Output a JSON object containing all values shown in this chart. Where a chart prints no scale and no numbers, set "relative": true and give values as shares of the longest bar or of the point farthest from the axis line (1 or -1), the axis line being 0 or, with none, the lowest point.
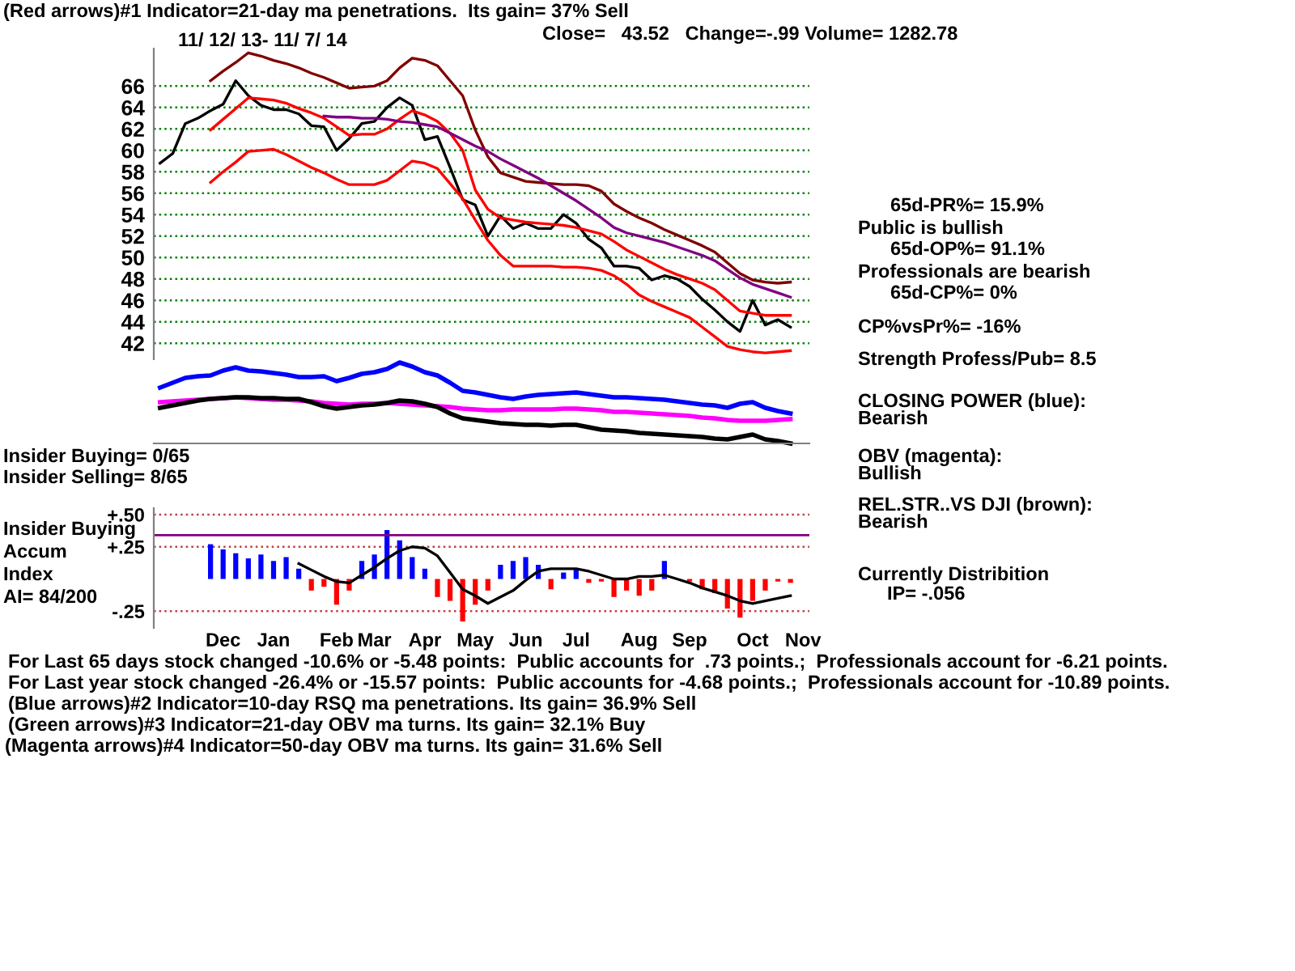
{
  "chart_data": [
    {
      "type": "line",
      "title": "(Red arrows)#1 Indicator=21-day ma penetrations.  Its gain= 37% Sell",
      "subtitle": "Close=   43.52   Change=-.99 Volume= 1282.78",
      "annotations": [
        "11/ 12/ 13- 11/ 7/ 14",
        "65d-PR%= 15.9%",
        "Public is bullish",
        "65d-OP%= 91.1%",
        "Professionals are bearish",
        "65d-CP%= 0%",
        "CP%vsPr%= -16%",
        "Strength Profess/Pub= 8.5",
        "CLOSING POWER (blue):\nBearish",
        "OBV (magenta):\nBullish",
        "REL.STR..VS DJI (brown):\nBearish",
        "Currently Distribition",
        "IP= -.056"
      ],
      "categories": [
        null,
        null,
        null,
        null,
        null,
        null,
        null,
        null,
        null,
        null,
        null,
        null,
        null,
        null,
        null,
        null,
        null,
        null,
        null,
        null,
        null,
        null,
        null,
        null,
        null,
        null,
        null,
        null,
        null,
        null,
        null,
        null,
        null,
        null,
        null,
        null,
        null,
        null,
        null,
        null,
        null,
        null,
        null,
        null,
        null,
        null,
        null,
        null,
        null,
        null,
        null
      ],
      "ylim": [
        40.5,
        69.5
      ],
      "yticks": [
        42,
        44,
        46,
        48,
        50,
        52,
        54,
        56,
        58,
        60,
        62,
        64,
        66
      ],
      "grid": "y",
      "tick_labels": "y",
      "series": [
        {
          "color": "#000000",
          "values": [
            58.8,
            59.7,
            62.5,
            63.0,
            63.7,
            64.3,
            66.5,
            65.1,
            64.2,
            63.8,
            63.8,
            63.4,
            62.3,
            62.2,
            60.0,
            61.1,
            62.5,
            62.7,
            64.0,
            64.9,
            64.2,
            61.0,
            61.3,
            58.4,
            55.4,
            54.9,
            52.0,
            53.9,
            52.7,
            53.2,
            52.7,
            52.7,
            54.0,
            53.2,
            51.7,
            50.9,
            49.2,
            49.2,
            49.0,
            47.9,
            48.3,
            48.0,
            47.3,
            46.1,
            45.1,
            44.0,
            43.1,
            46.0,
            43.7,
            44.2,
            43.5
          ]
        },
        {
          "color": "#800000",
          "values": [
            null,
            null,
            null,
            null,
            66.5,
            67.4,
            68.2,
            69.1,
            68.8,
            68.4,
            68.1,
            67.7,
            67.2,
            66.8,
            66.3,
            65.8,
            65.9,
            66.0,
            66.5,
            67.7,
            68.6,
            68.4,
            67.9,
            66.5,
            65.1,
            61.9,
            59.4,
            57.9,
            57.5,
            57.1,
            57.0,
            56.9,
            56.8,
            56.8,
            56.7,
            56.2,
            55.0,
            54.3,
            53.7,
            53.2,
            52.6,
            52.1,
            51.6,
            51.1,
            50.5,
            49.5,
            48.5,
            47.9,
            47.7,
            47.6,
            47.7
          ]
        },
        {
          "color": "#ff0000",
          "values": [
            null,
            null,
            null,
            null,
            61.9,
            62.9,
            63.9,
            64.9,
            64.8,
            64.7,
            64.4,
            63.9,
            63.5,
            63.0,
            62.2,
            61.4,
            61.5,
            61.5,
            62.0,
            62.9,
            63.7,
            63.3,
            62.7,
            61.6,
            60.0,
            56.3,
            54.5,
            53.7,
            53.5,
            53.3,
            53.2,
            53.1,
            53.0,
            52.8,
            52.5,
            52.2,
            51.5,
            50.7,
            50.1,
            49.5,
            48.9,
            48.4,
            48.0,
            47.6,
            47.0,
            46.0,
            45.0,
            44.8,
            44.6,
            44.6,
            44.6
          ]
        },
        {
          "color": "#ff0000",
          "values": [
            null,
            null,
            null,
            null,
            57.0,
            58.0,
            58.9,
            59.9,
            60.0,
            60.1,
            59.6,
            59.0,
            58.4,
            57.9,
            57.3,
            56.8,
            56.8,
            56.8,
            57.2,
            58.1,
            59.0,
            58.8,
            58.3,
            56.9,
            55.5,
            53.5,
            51.6,
            50.2,
            49.2,
            49.2,
            49.2,
            49.2,
            49.1,
            49.1,
            49.0,
            48.8,
            48.3,
            47.5,
            46.5,
            45.9,
            45.4,
            44.9,
            44.4,
            43.5,
            42.6,
            41.7,
            41.4,
            41.2,
            41.1,
            41.2,
            41.3
          ]
        },
        {
          "color": "#800080",
          "values": [
            null,
            null,
            null,
            null,
            null,
            null,
            null,
            null,
            null,
            null,
            null,
            null,
            null,
            63.2,
            63.1,
            63.1,
            63.0,
            63.0,
            62.9,
            62.7,
            62.6,
            62.4,
            62.2,
            61.6,
            61.0,
            60.4,
            59.9,
            59.2,
            58.6,
            58.0,
            57.4,
            56.7,
            56.0,
            55.3,
            54.5,
            53.7,
            52.8,
            52.3,
            52.0,
            51.7,
            51.4,
            51.0,
            50.6,
            50.2,
            49.7,
            48.9,
            48.1,
            47.5,
            47.1,
            46.7,
            46.3
          ]
        }
      ]
    },
    {
      "type": "line",
      "relative": true,
      "tick_labels": false,
      "annotations": [
        "Insider Buying= 0/65",
        "Insider Selling= 8/65"
      ],
      "categories": [
        null,
        null,
        null,
        null,
        null,
        null,
        null,
        null,
        null,
        null,
        null,
        null,
        null,
        null,
        null,
        null,
        null,
        null,
        null,
        null,
        null,
        null,
        null,
        null,
        null,
        null,
        null,
        null,
        null,
        null,
        null,
        null,
        null,
        null,
        null,
        null,
        null,
        null,
        null,
        null,
        null,
        null,
        null,
        null,
        null,
        null,
        null,
        null,
        null,
        null,
        null
      ],
      "series": [
        {
          "color": "#0000ff",
          "values": [
            0.69,
            0.75,
            0.81,
            0.83,
            0.84,
            0.9,
            0.94,
            0.9,
            0.89,
            0.87,
            0.85,
            0.82,
            0.82,
            0.83,
            0.77,
            0.81,
            0.86,
            0.88,
            0.92,
            1.0,
            0.95,
            0.88,
            0.84,
            0.75,
            0.65,
            0.63,
            0.6,
            0.57,
            0.55,
            0.58,
            0.6,
            0.61,
            0.62,
            0.63,
            0.61,
            0.59,
            0.57,
            0.57,
            0.56,
            0.55,
            0.54,
            0.52,
            0.5,
            0.48,
            0.47,
            0.44,
            0.49,
            0.51,
            0.44,
            0.4,
            0.37
          ]
        },
        {
          "color": "#ff00ff",
          "values": [
            0.51,
            0.52,
            0.53,
            0.54,
            0.55,
            0.56,
            0.57,
            0.56,
            0.55,
            0.54,
            0.54,
            0.53,
            0.52,
            0.5,
            0.49,
            0.48,
            0.49,
            0.49,
            0.5,
            0.49,
            0.48,
            0.47,
            0.46,
            0.45,
            0.43,
            0.42,
            0.41,
            0.41,
            0.42,
            0.42,
            0.42,
            0.42,
            0.43,
            0.43,
            0.42,
            0.41,
            0.39,
            0.39,
            0.38,
            0.37,
            0.36,
            0.35,
            0.34,
            0.32,
            0.31,
            0.29,
            0.28,
            0.28,
            0.28,
            0.29,
            0.3
          ]
        },
        {
          "color": "#000000",
          "values": [
            0.44,
            0.47,
            0.5,
            0.53,
            0.55,
            0.56,
            0.57,
            0.57,
            0.56,
            0.56,
            0.55,
            0.55,
            0.51,
            0.46,
            0.43,
            0.45,
            0.47,
            0.48,
            0.5,
            0.53,
            0.52,
            0.49,
            0.45,
            0.37,
            0.31,
            0.29,
            0.27,
            0.25,
            0.24,
            0.23,
            0.23,
            0.22,
            0.23,
            0.23,
            0.2,
            0.17,
            0.16,
            0.15,
            0.13,
            0.12,
            0.11,
            0.1,
            0.09,
            0.08,
            0.06,
            0.05,
            0.08,
            0.11,
            0.05,
            0.03,
            0
          ]
        }
      ]
    },
    {
      "type": "bar",
      "ylim": [
        -0.38,
        0.55
      ],
      "yticks": [
        {
          "value": 0.5,
          "label": "+.50"
        },
        {
          "value": 0.25,
          "label": "+.25"
        },
        {
          "value": -0.25,
          "label": "-.25"
        }
      ],
      "grid": "y",
      "categories": [
        null,
        null,
        null,
        null,
        null,
        "Dec",
        null,
        null,
        null,
        "Jan",
        null,
        null,
        null,
        null,
        "Feb",
        null,
        null,
        "Mar",
        null,
        null,
        null,
        "Apr",
        null,
        null,
        null,
        "May",
        null,
        null,
        null,
        "Jun",
        null,
        null,
        null,
        "Jul",
        null,
        null,
        null,
        null,
        "Aug",
        null,
        null,
        null,
        "Sep",
        null,
        null,
        null,
        null,
        "Oct",
        null,
        null,
        null,
        "Nov"
      ],
      "ref_lines": [
        {
          "axis": "y",
          "value": 0.34,
          "color": "#800080"
        }
      ],
      "annotations": [
        "Insider Buying",
        "Accum",
        "Index",
        "AI= 84/200",
        "For Last 65 days stock changed -10.6% or -5.48 points:  Public accounts for  .73 points.;  Professionals account for -6.21 points.",
        "For Last year stock changed -26.4% or -15.57 points:  Public accounts for -4.68 points.;  Professionals account for -10.89 points.",
        "(Blue arrows)#2 Indicator=10-day RSQ ma penetrations. Its gain= 36.9% Sell",
        "(Green arrows)#3 Indicator=21-day OBV ma turns. Its gain= 32.1% Buy",
        "(Magenta arrows)#4 Indicator=50-day OBV ma turns. Its gain= 31.6% Sell"
      ],
      "series": [
        {
          "type": "bar",
          "values": [
            null,
            null,
            null,
            null,
            0.27,
            0.23,
            0.2,
            0.16,
            0.19,
            0.14,
            0.17,
            0.08,
            -0.09,
            -0.06,
            -0.2,
            -0.09,
            0.14,
            0.19,
            0.38,
            0.3,
            0.17,
            0.08,
            -0.14,
            -0.17,
            -0.33,
            -0.2,
            -0.09,
            0.11,
            0.14,
            0.17,
            0.11,
            -0.08,
            0.05,
            0.08,
            -0.03,
            -0.02,
            -0.14,
            -0.09,
            -0.13,
            -0.09,
            0.14,
            0,
            -0.02,
            -0.08,
            -0.11,
            -0.23,
            -0.3,
            -0.17,
            -0.09,
            -0.02,
            -0.03,
            null
          ],
          "colors": [
            null,
            null,
            null,
            null,
            "#0000ff",
            "#0000ff",
            "#0000ff",
            "#0000ff",
            "#0000ff",
            "#0000ff",
            "#0000ff",
            "#0000ff",
            "#ff0000",
            "#ff0000",
            "#ff0000",
            "#ff0000",
            "#0000ff",
            "#0000ff",
            "#0000ff",
            "#0000ff",
            "#0000ff",
            "#0000ff",
            "#ff0000",
            "#ff0000",
            "#ff0000",
            "#ff0000",
            "#ff0000",
            "#0000ff",
            "#0000ff",
            "#0000ff",
            "#0000ff",
            "#ff0000",
            "#0000ff",
            "#0000ff",
            "#ff0000",
            "#ff0000",
            "#ff0000",
            "#ff0000",
            "#ff0000",
            "#ff0000",
            "#0000ff",
            "#ff0000",
            "#ff0000",
            "#ff0000",
            "#ff0000",
            "#ff0000",
            "#ff0000",
            "#ff0000",
            "#ff0000",
            "#ff0000",
            "#ff0000",
            null
          ]
        },
        {
          "type": "line",
          "color": "#000000",
          "values": [
            null,
            null,
            null,
            null,
            null,
            null,
            null,
            null,
            null,
            null,
            null,
            0.12,
            0.07,
            0.02,
            -0.02,
            -0.03,
            0.03,
            0.09,
            0.16,
            0.22,
            0.25,
            0.24,
            0.18,
            0.05,
            -0.08,
            -0.13,
            -0.19,
            -0.14,
            -0.09,
            -0.01,
            0.06,
            0.08,
            0.08,
            0.08,
            0.06,
            0.03,
            0,
            0,
            0.02,
            0.02,
            0.03,
            0,
            -0.03,
            -0.07,
            -0.1,
            -0.13,
            -0.17,
            -0.19,
            -0.17,
            -0.15,
            -0.13,
            null
          ]
        }
      ]
    }
  ]
}
